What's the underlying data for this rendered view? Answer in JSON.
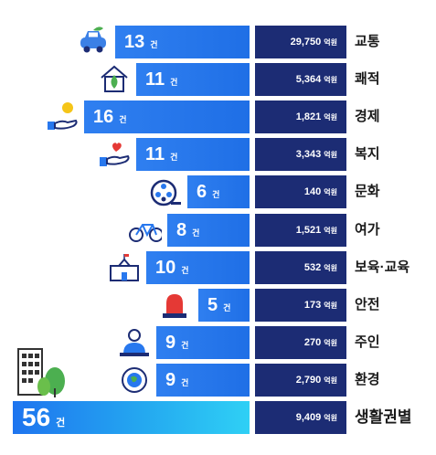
{
  "chart_data": {
    "type": "bar",
    "rows": [
      {
        "label": "교통",
        "count": 13,
        "unit": "건",
        "amount": "29,750",
        "amount_unit": "억원",
        "icon": "car-icon"
      },
      {
        "label": "쾌적",
        "count": 11,
        "unit": "건",
        "amount": "5,364",
        "amount_unit": "억원",
        "icon": "eco-house-icon"
      },
      {
        "label": "경제",
        "count": 16,
        "unit": "건",
        "amount": "1,821",
        "amount_unit": "억원",
        "icon": "coin-hand-icon"
      },
      {
        "label": "복지",
        "count": 11,
        "unit": "건",
        "amount": "3,343",
        "amount_unit": "억원",
        "icon": "heart-hand-icon"
      },
      {
        "label": "문화",
        "count": 6,
        "unit": "건",
        "amount": "140",
        "amount_unit": "억원",
        "icon": "film-reel-icon"
      },
      {
        "label": "여가",
        "count": 8,
        "unit": "건",
        "amount": "1,521",
        "amount_unit": "억원",
        "icon": "bicycle-icon"
      },
      {
        "label": "보육·교육",
        "count": 10,
        "unit": "건",
        "amount": "532",
        "amount_unit": "억원",
        "icon": "school-icon"
      },
      {
        "label": "안전",
        "count": 5,
        "unit": "건",
        "amount": "173",
        "amount_unit": "억원",
        "icon": "siren-icon"
      },
      {
        "label": "주인",
        "count": 9,
        "unit": "건",
        "amount": "270",
        "amount_unit": "억원",
        "icon": "person-icon"
      },
      {
        "label": "환경",
        "count": 9,
        "unit": "건",
        "amount": "2,790",
        "amount_unit": "억원",
        "icon": "recycle-earth-icon"
      },
      {
        "label": "생활권별",
        "count": 56,
        "unit": "건",
        "amount": "9,409",
        "amount_unit": "억원",
        "icon": "building-tree-icon",
        "total": true
      }
    ],
    "colors": {
      "bar": "#2878ee",
      "total_bar_start": "#1e74ef",
      "total_bar_end": "#2fd0f5",
      "budget_box": "#1c2c74",
      "text": "#1a1a1a"
    }
  }
}
